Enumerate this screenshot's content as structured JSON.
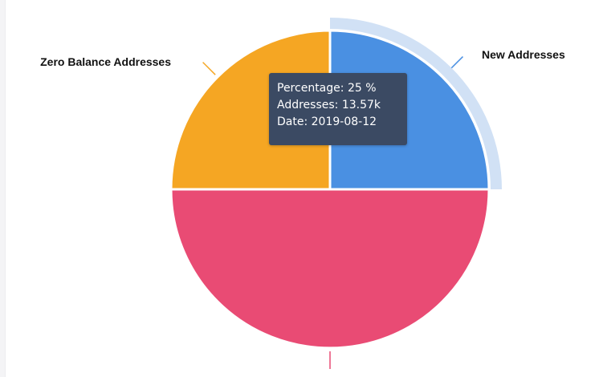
{
  "chart_data": {
    "type": "pie",
    "title": "",
    "slices": [
      {
        "label": "New Addresses",
        "percentage": 25,
        "color": "#4a90e2",
        "highlighted": true
      },
      {
        "label": "",
        "percentage": 50,
        "color": "#e94b74",
        "highlighted": false
      },
      {
        "label": "Zero Balance Addresses",
        "percentage": 25,
        "color": "#f5a623",
        "highlighted": false
      }
    ],
    "highlight_color": "#d1e1f5",
    "tooltip": {
      "percentage_label": "Percentage:",
      "percentage_value": "25 %",
      "addresses_label": "Addresses:",
      "addresses_value": "13.57k",
      "date_label": "Date:",
      "date_value": "2019-08-12"
    }
  }
}
